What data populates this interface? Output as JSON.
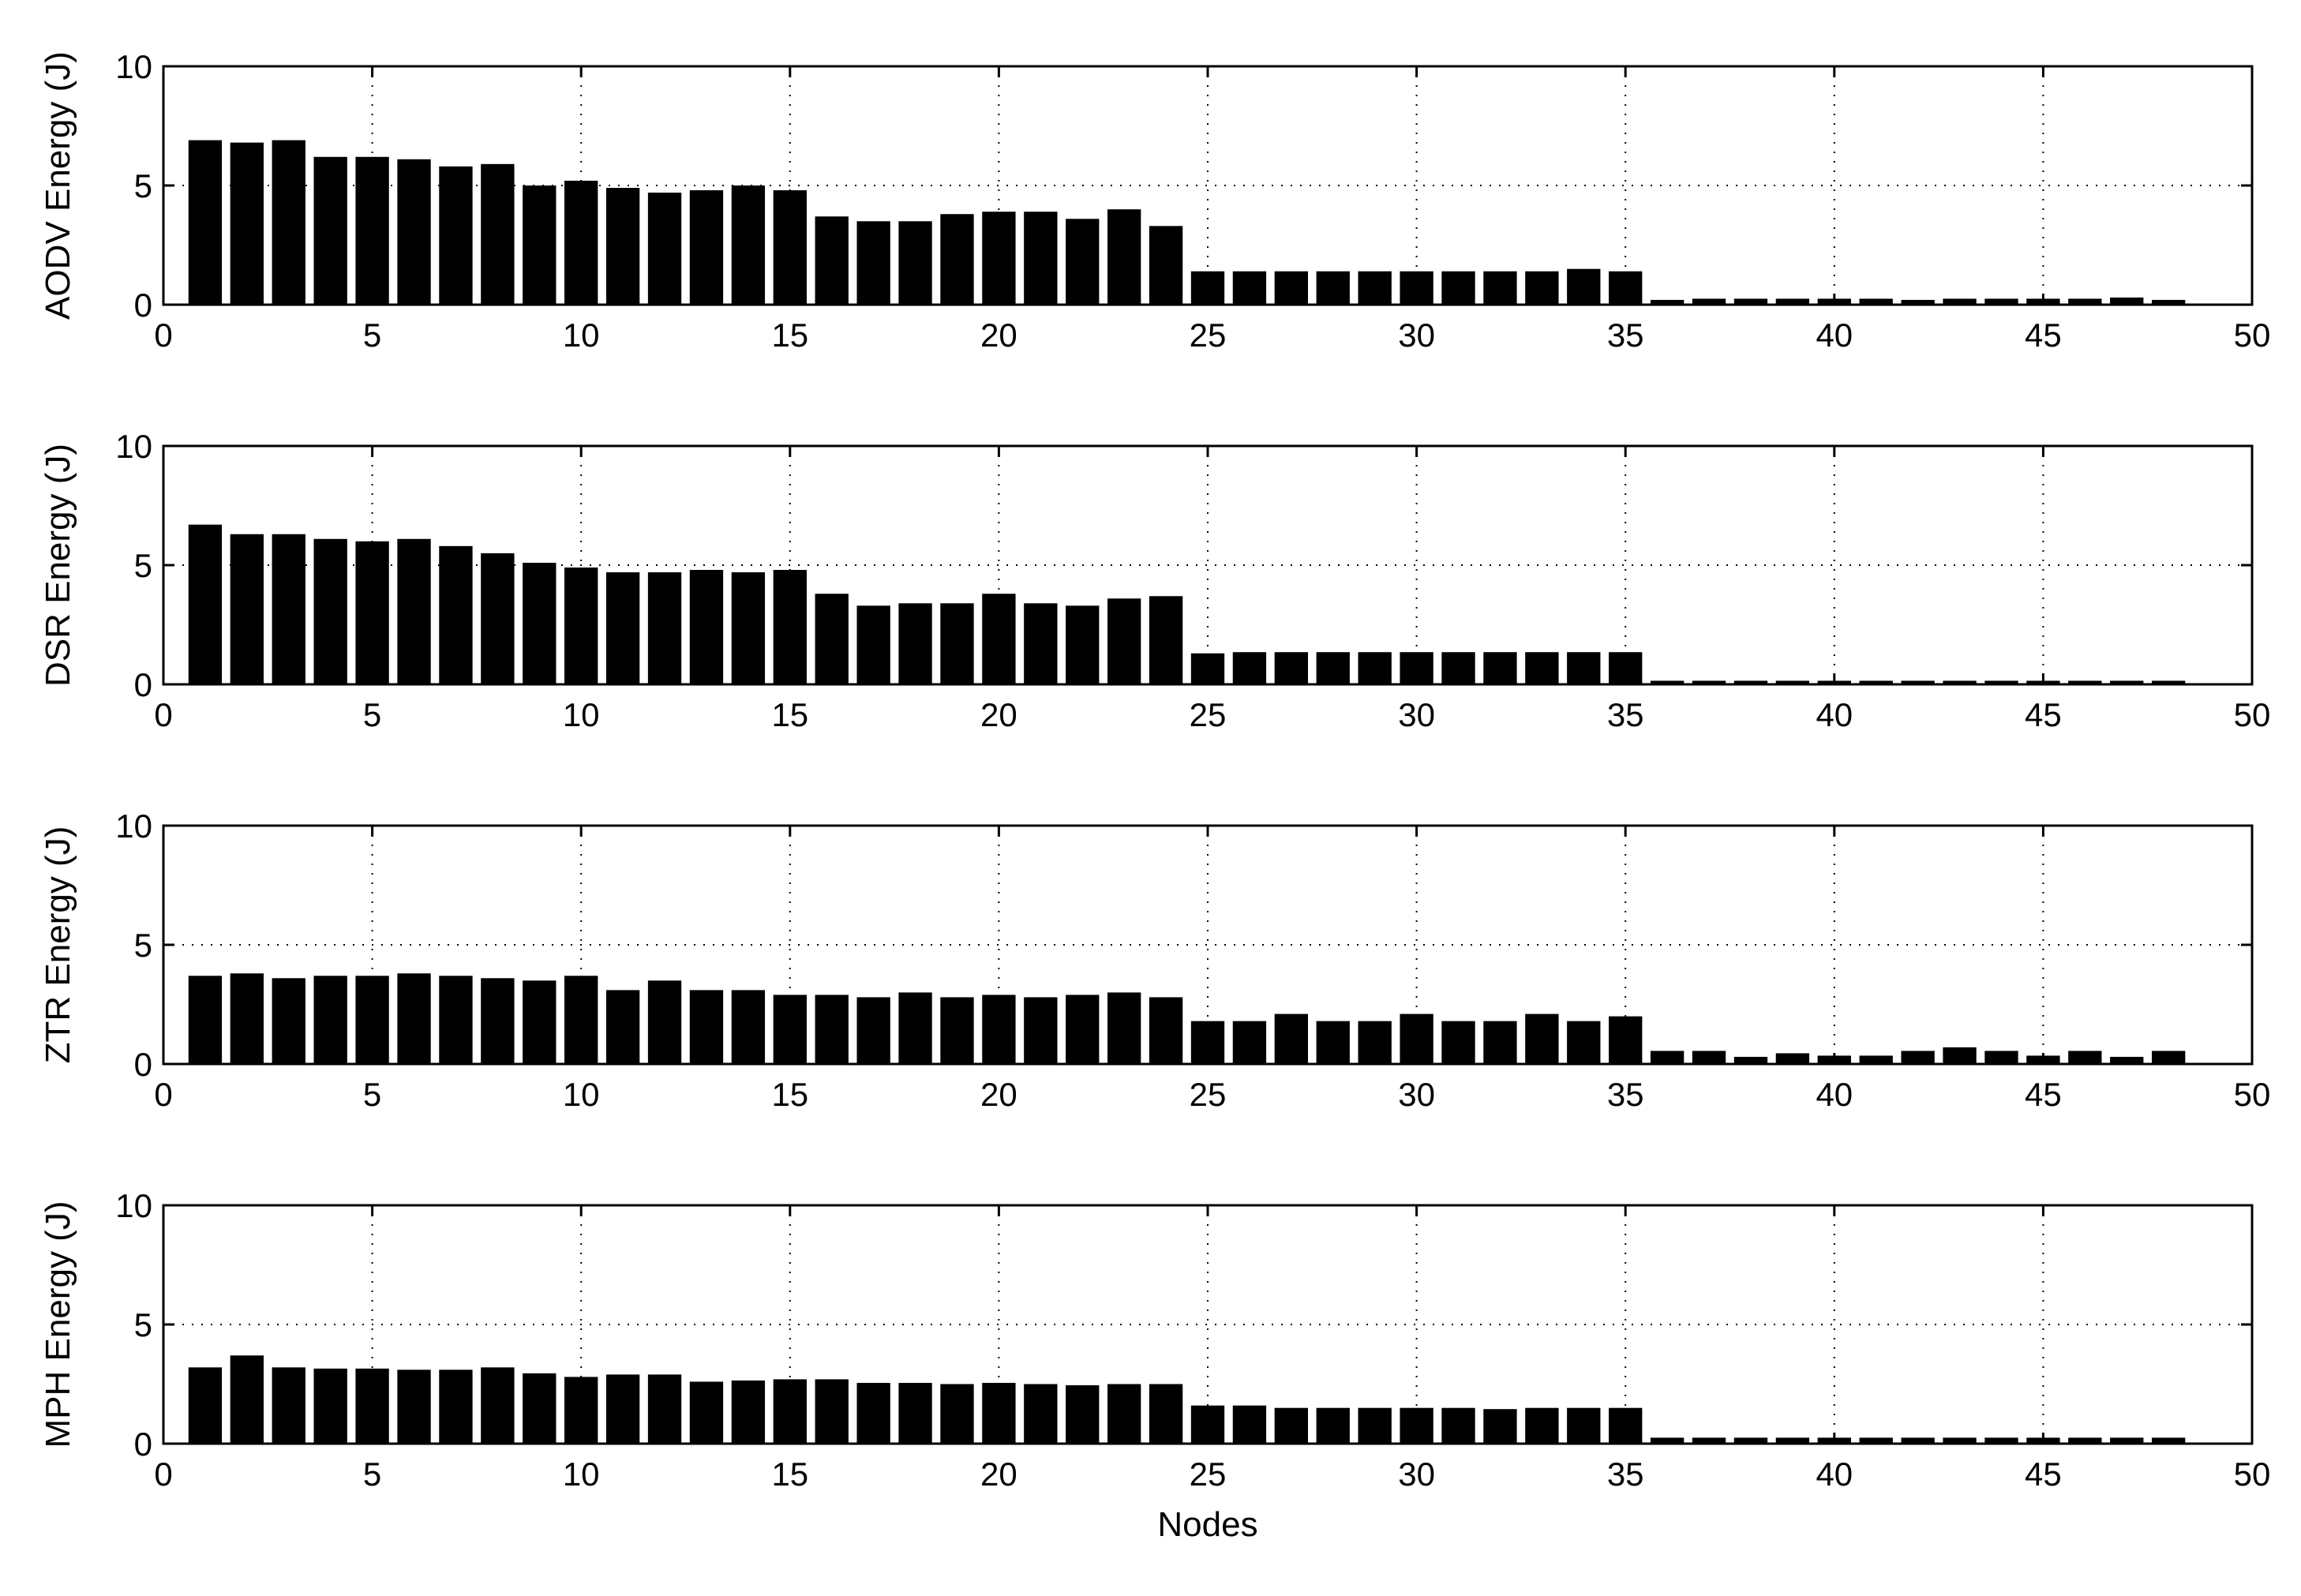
{
  "figure": {
    "xlabel": "Nodes"
  },
  "chart_data": [
    {
      "type": "bar",
      "ylabel": "AODV Energy (J)",
      "xlim": [
        0,
        50
      ],
      "ylim": [
        0,
        10
      ],
      "xticks": [
        0,
        5,
        10,
        15,
        20,
        25,
        30,
        35,
        40,
        45,
        50
      ],
      "yticks": [
        0,
        5,
        10
      ],
      "grid": true,
      "bar_color": "#000000",
      "x": [
        1,
        2,
        3,
        4,
        5,
        6,
        7,
        8,
        9,
        10,
        11,
        12,
        13,
        14,
        15,
        16,
        17,
        18,
        19,
        20,
        21,
        22,
        23,
        24,
        25,
        26,
        27,
        28,
        29,
        30,
        31,
        32,
        33,
        34,
        35,
        36,
        37,
        38,
        39,
        40,
        41,
        42,
        43,
        44,
        45,
        46,
        47,
        48
      ],
      "values": [
        6.9,
        6.8,
        6.9,
        6.2,
        6.2,
        6.1,
        5.8,
        5.9,
        5.0,
        5.2,
        4.9,
        4.7,
        4.8,
        5.0,
        4.8,
        3.7,
        3.5,
        3.5,
        3.8,
        3.9,
        3.9,
        3.6,
        4.0,
        3.3,
        1.4,
        1.4,
        1.4,
        1.4,
        1.4,
        1.4,
        1.4,
        1.4,
        1.4,
        1.5,
        1.4,
        0.2,
        0.25,
        0.25,
        0.25,
        0.25,
        0.25,
        0.2,
        0.25,
        0.25,
        0.25,
        0.25,
        0.3,
        0.2
      ]
    },
    {
      "type": "bar",
      "ylabel": "DSR Energy (J)",
      "xlim": [
        0,
        50
      ],
      "ylim": [
        0,
        10
      ],
      "xticks": [
        0,
        5,
        10,
        15,
        20,
        25,
        30,
        35,
        40,
        45,
        50
      ],
      "yticks": [
        0,
        5,
        10
      ],
      "grid": true,
      "bar_color": "#000000",
      "x": [
        1,
        2,
        3,
        4,
        5,
        6,
        7,
        8,
        9,
        10,
        11,
        12,
        13,
        14,
        15,
        16,
        17,
        18,
        19,
        20,
        21,
        22,
        23,
        24,
        25,
        26,
        27,
        28,
        29,
        30,
        31,
        32,
        33,
        34,
        35,
        36,
        37,
        38,
        39,
        40,
        41,
        42,
        43,
        44,
        45,
        46,
        47,
        48
      ],
      "values": [
        6.7,
        6.3,
        6.3,
        6.1,
        6.0,
        6.1,
        5.8,
        5.5,
        5.1,
        4.9,
        4.7,
        4.7,
        4.8,
        4.7,
        4.8,
        3.8,
        3.3,
        3.4,
        3.4,
        3.8,
        3.4,
        3.3,
        3.6,
        3.7,
        1.3,
        1.35,
        1.35,
        1.35,
        1.35,
        1.35,
        1.35,
        1.35,
        1.35,
        1.35,
        1.35,
        0.15,
        0.15,
        0.15,
        0.15,
        0.15,
        0.15,
        0.15,
        0.15,
        0.15,
        0.15,
        0.15,
        0.15,
        0.15
      ]
    },
    {
      "type": "bar",
      "ylabel": "ZTR Energy (J)",
      "xlim": [
        0,
        50
      ],
      "ylim": [
        0,
        10
      ],
      "xticks": [
        0,
        5,
        10,
        15,
        20,
        25,
        30,
        35,
        40,
        45,
        50
      ],
      "yticks": [
        0,
        5,
        10
      ],
      "grid": true,
      "bar_color": "#000000",
      "x": [
        1,
        2,
        3,
        4,
        5,
        6,
        7,
        8,
        9,
        10,
        11,
        12,
        13,
        14,
        15,
        16,
        17,
        18,
        19,
        20,
        21,
        22,
        23,
        24,
        25,
        26,
        27,
        28,
        29,
        30,
        31,
        32,
        33,
        34,
        35,
        36,
        37,
        38,
        39,
        40,
        41,
        42,
        43,
        44,
        45,
        46,
        47,
        48
      ],
      "values": [
        3.7,
        3.8,
        3.6,
        3.7,
        3.7,
        3.8,
        3.7,
        3.6,
        3.5,
        3.7,
        3.1,
        3.5,
        3.1,
        3.1,
        2.9,
        2.9,
        2.8,
        3.0,
        2.8,
        2.9,
        2.8,
        2.9,
        3.0,
        2.8,
        1.8,
        1.8,
        2.1,
        1.8,
        1.8,
        2.1,
        1.8,
        1.8,
        2.1,
        1.8,
        2.0,
        0.55,
        0.55,
        0.3,
        0.45,
        0.35,
        0.35,
        0.55,
        0.7,
        0.55,
        0.35,
        0.55,
        0.3,
        0.55
      ]
    },
    {
      "type": "bar",
      "ylabel": "MPH Energy (J)",
      "xlim": [
        0,
        50
      ],
      "ylim": [
        0,
        10
      ],
      "xticks": [
        0,
        5,
        10,
        15,
        20,
        25,
        30,
        35,
        40,
        45,
        50
      ],
      "yticks": [
        0,
        5,
        10
      ],
      "grid": true,
      "bar_color": "#000000",
      "x": [
        1,
        2,
        3,
        4,
        5,
        6,
        7,
        8,
        9,
        10,
        11,
        12,
        13,
        14,
        15,
        16,
        17,
        18,
        19,
        20,
        21,
        22,
        23,
        24,
        25,
        26,
        27,
        28,
        29,
        30,
        31,
        32,
        33,
        34,
        35,
        36,
        37,
        38,
        39,
        40,
        41,
        42,
        43,
        44,
        45,
        46,
        47,
        48
      ],
      "values": [
        3.2,
        3.7,
        3.2,
        3.15,
        3.15,
        3.1,
        3.1,
        3.2,
        2.95,
        2.8,
        2.9,
        2.9,
        2.6,
        2.65,
        2.7,
        2.7,
        2.55,
        2.55,
        2.5,
        2.55,
        2.5,
        2.45,
        2.5,
        2.5,
        1.6,
        1.6,
        1.5,
        1.5,
        1.5,
        1.5,
        1.5,
        1.45,
        1.5,
        1.5,
        1.5,
        0.25,
        0.25,
        0.25,
        0.25,
        0.25,
        0.25,
        0.25,
        0.25,
        0.25,
        0.25,
        0.25,
        0.25,
        0.25
      ]
    }
  ]
}
